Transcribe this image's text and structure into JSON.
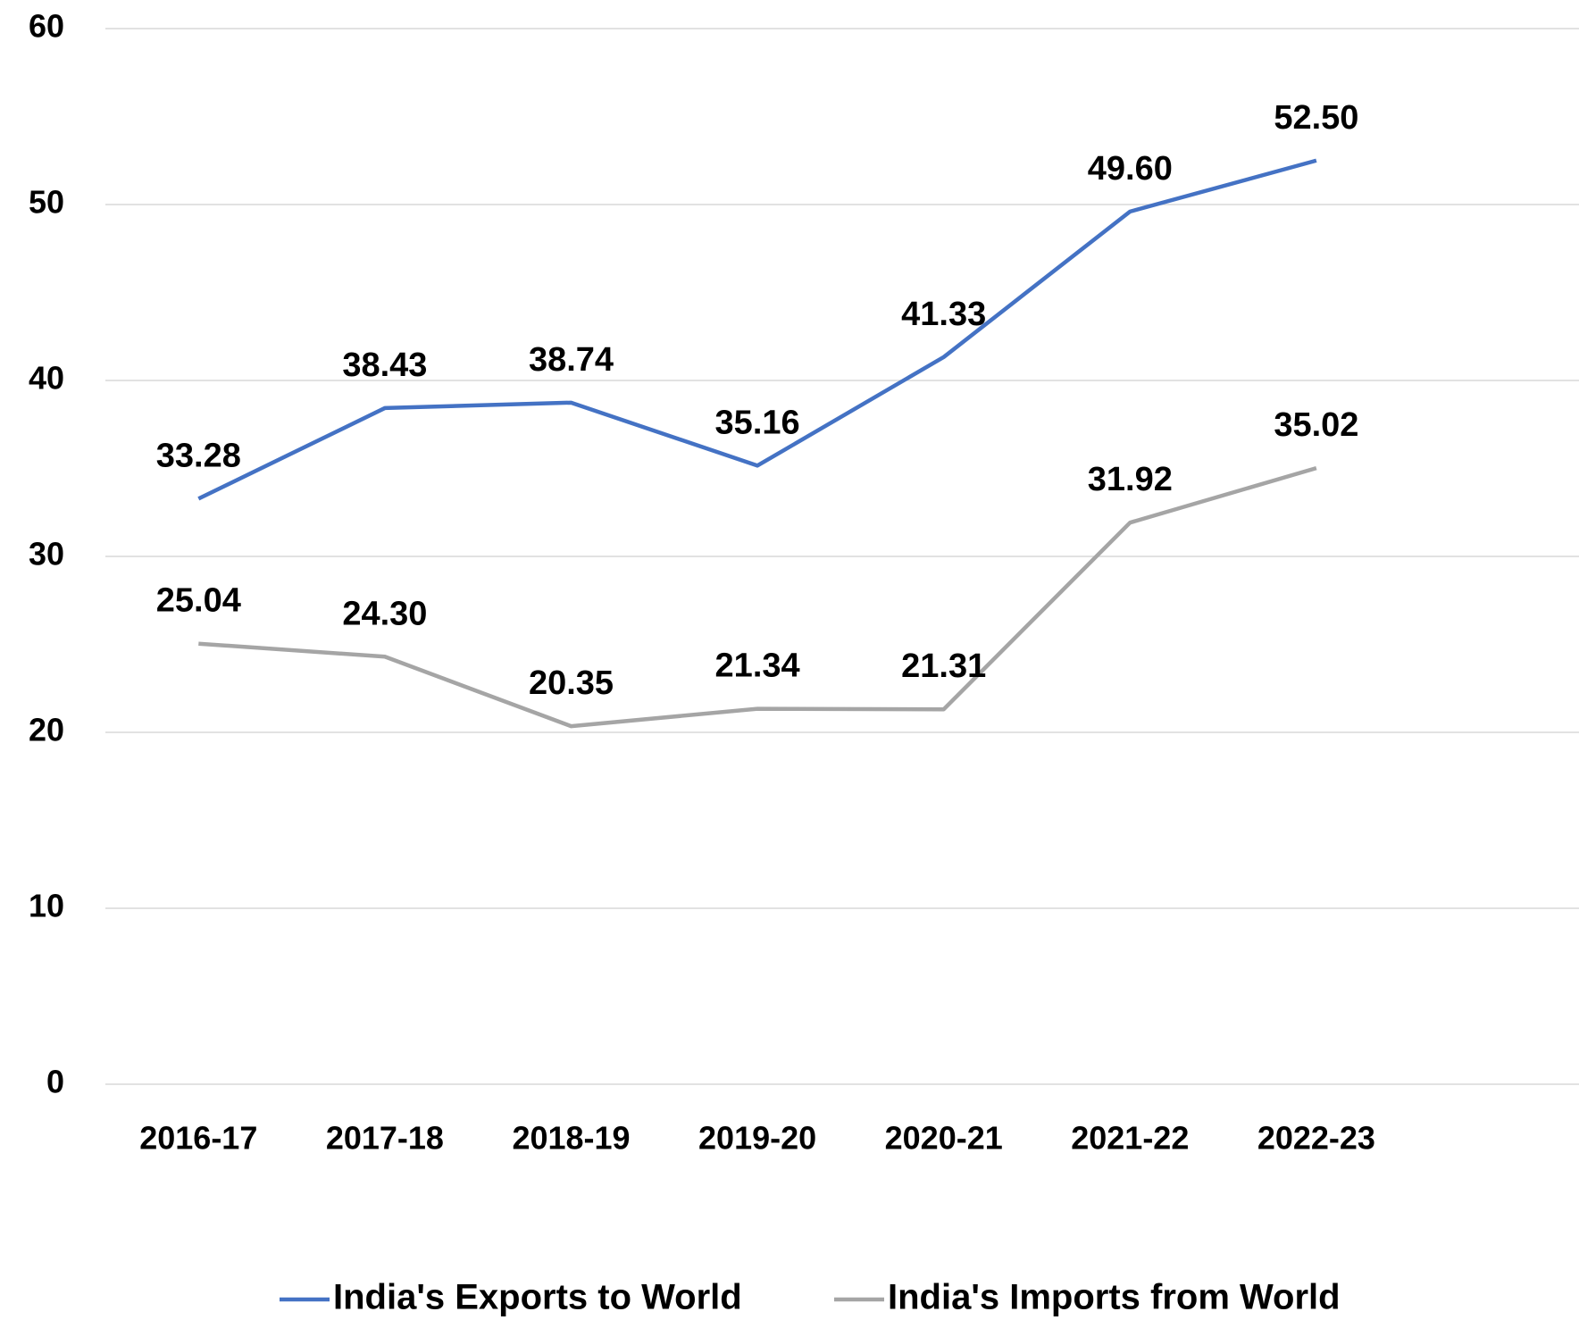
{
  "chart_data": {
    "type": "line",
    "categories": [
      "2016-17",
      "2017-18",
      "2018-19",
      "2019-20",
      "2020-21",
      "2021-22",
      "2022-23"
    ],
    "series": [
      {
        "name": "India's Exports to World",
        "color": "#4472c4",
        "values": [
          33.28,
          38.43,
          38.74,
          35.16,
          41.33,
          49.6,
          52.5
        ],
        "value_labels": [
          "33.28",
          "38.43",
          "38.74",
          "35.16",
          "41.33",
          "49.60",
          "52.50"
        ]
      },
      {
        "name": "India's Imports from World",
        "color": "#a5a5a5",
        "values": [
          25.04,
          24.3,
          20.35,
          21.34,
          21.31,
          31.92,
          35.02
        ],
        "value_labels": [
          "25.04",
          "24.30",
          "20.35",
          "21.34",
          "21.31",
          "31.92",
          "35.02"
        ]
      }
    ],
    "ylim": [
      0,
      60
    ],
    "yticks": [
      0,
      10,
      20,
      30,
      40,
      50,
      60
    ],
    "grid": true,
    "legend": "bottom"
  }
}
